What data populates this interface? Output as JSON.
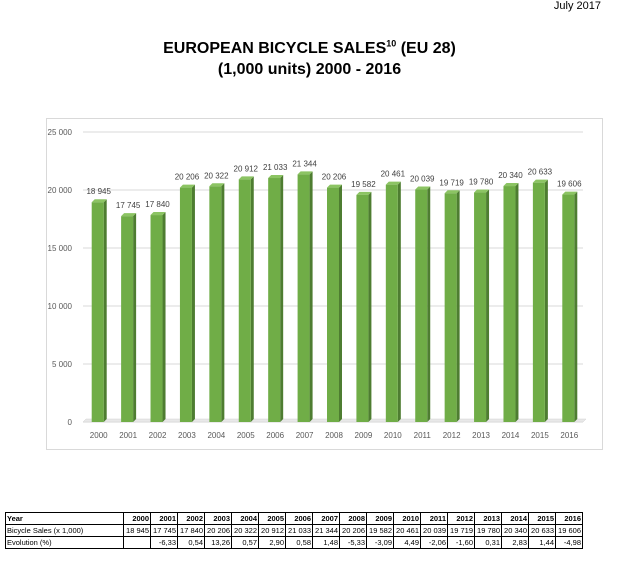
{
  "header": {
    "date": "July 2017",
    "title_line1": "EUROPEAN BICYCLE SALES",
    "title_sup": "10",
    "title_suffix": " (EU 28)",
    "title_line2": "(1,000 units) 2000 - 2016"
  },
  "chart_data": {
    "type": "bar",
    "title": "EUROPEAN BICYCLE SALES10 (EU 28) (1,000 units) 2000 - 2016",
    "xlabel": "",
    "ylabel": "",
    "categories": [
      "2000",
      "2001",
      "2002",
      "2003",
      "2004",
      "2005",
      "2006",
      "2007",
      "2008",
      "2009",
      "2010",
      "2011",
      "2012",
      "2013",
      "2014",
      "2015",
      "2016"
    ],
    "values": [
      18945,
      17745,
      17840,
      20206,
      20322,
      20912,
      21033,
      21344,
      20206,
      19582,
      20461,
      20039,
      19719,
      19780,
      20340,
      20633,
      19606
    ],
    "value_labels": [
      "18 945",
      "17 745",
      "17 840",
      "20 206",
      "20 322",
      "20 912",
      "21 033",
      "21 344",
      "20 206",
      "19 582",
      "20 461",
      "20 039",
      "19 719",
      "19 780",
      "20 340",
      "20 633",
      "19 606"
    ],
    "ylim": [
      0,
      25000
    ],
    "yticks": [
      0,
      5000,
      10000,
      15000,
      20000,
      25000
    ],
    "ytick_labels": [
      "0",
      "5 000",
      "10 000",
      "15 000",
      "20 000",
      "25 000"
    ],
    "grid": true,
    "bar_color": "#70ad47",
    "bar_side_color": "#4e7d31"
  },
  "table": {
    "row_year_label": "Year",
    "row_sales_label": "Bicycle Sales (x 1,000)",
    "row_evolution_label": "Evolution (%)",
    "years": [
      "2000",
      "2001",
      "2002",
      "2003",
      "2004",
      "2005",
      "2006",
      "2007",
      "2008",
      "2009",
      "2010",
      "2011",
      "2012",
      "2013",
      "2014",
      "2015",
      "2016"
    ],
    "sales": [
      "18 945",
      "17 745",
      "17 840",
      "20 206",
      "20 322",
      "20 912",
      "21 033",
      "21 344",
      "20 206",
      "19 582",
      "20 461",
      "20 039",
      "19 719",
      "19 780",
      "20 340",
      "20 633",
      "19 606"
    ],
    "evolution": [
      "",
      "-6,33",
      "0,54",
      "13,26",
      "0,57",
      "2,90",
      "0,58",
      "1,48",
      "-5,33",
      "-3,09",
      "4,49",
      "-2,06",
      "-1,60",
      "0,31",
      "2,83",
      "1,44",
      "-4,98"
    ]
  }
}
